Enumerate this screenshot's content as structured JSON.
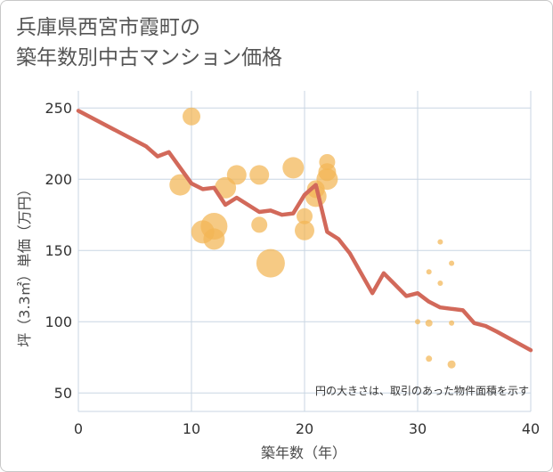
{
  "title_lines": [
    "兵庫県西宮市霞町の",
    "築年数別中古マンション価格"
  ],
  "chart_data": {
    "type": "scatter",
    "xlabel": "築年数（年）",
    "ylabel": "坪（3.3㎡）単価（万円）",
    "xlim": [
      0,
      40
    ],
    "ylim": [
      37,
      262
    ],
    "xticks": [
      0,
      10,
      20,
      30,
      40
    ],
    "yticks": [
      50,
      100,
      150,
      200,
      250
    ],
    "grid": true,
    "note": "円の大きさは、取引のあった物件面積を示す",
    "colors": {
      "bubble": "#f2b654",
      "line": "#d2695a",
      "grid": "#c9d6e3"
    },
    "bubbles": [
      {
        "x": 10,
        "y": 244,
        "size": 10
      },
      {
        "x": 9,
        "y": 196,
        "size": 12
      },
      {
        "x": 11,
        "y": 163,
        "size": 13
      },
      {
        "x": 12,
        "y": 167,
        "size": 15
      },
      {
        "x": 12,
        "y": 158,
        "size": 12
      },
      {
        "x": 13,
        "y": 194,
        "size": 12
      },
      {
        "x": 14,
        "y": 203,
        "size": 11
      },
      {
        "x": 16,
        "y": 203,
        "size": 11
      },
      {
        "x": 16,
        "y": 168,
        "size": 9
      },
      {
        "x": 17,
        "y": 141,
        "size": 16
      },
      {
        "x": 19,
        "y": 208,
        "size": 12
      },
      {
        "x": 20,
        "y": 174,
        "size": 9
      },
      {
        "x": 20,
        "y": 164,
        "size": 11
      },
      {
        "x": 21,
        "y": 188,
        "size": 12
      },
      {
        "x": 21,
        "y": 193,
        "size": 10
      },
      {
        "x": 22,
        "y": 212,
        "size": 9
      },
      {
        "x": 22,
        "y": 205,
        "size": 10
      },
      {
        "x": 22,
        "y": 200,
        "size": 12
      },
      {
        "x": 30,
        "y": 100,
        "size": 3
      },
      {
        "x": 31,
        "y": 135,
        "size": 3
      },
      {
        "x": 31,
        "y": 99,
        "size": 4
      },
      {
        "x": 31,
        "y": 74,
        "size": 3.5
      },
      {
        "x": 32,
        "y": 156,
        "size": 3
      },
      {
        "x": 32,
        "y": 127,
        "size": 3
      },
      {
        "x": 33,
        "y": 141,
        "size": 3
      },
      {
        "x": 33,
        "y": 99,
        "size": 3
      },
      {
        "x": 33,
        "y": 70,
        "size": 4.5
      }
    ],
    "trend": {
      "x": [
        0,
        6,
        7,
        8,
        10,
        11,
        12,
        13,
        14,
        16,
        17,
        18,
        19,
        20,
        21,
        22,
        23,
        24,
        25,
        26,
        27,
        28,
        29,
        30,
        31,
        32,
        33,
        34,
        35,
        36,
        37,
        40
      ],
      "y": [
        248,
        223,
        216,
        219,
        197,
        193,
        194,
        182,
        187,
        177,
        178,
        175,
        176,
        189,
        196,
        163,
        158,
        148,
        134,
        120,
        134,
        126,
        118,
        120,
        114,
        110,
        109,
        108,
        99,
        97,
        93,
        80
      ]
    }
  }
}
